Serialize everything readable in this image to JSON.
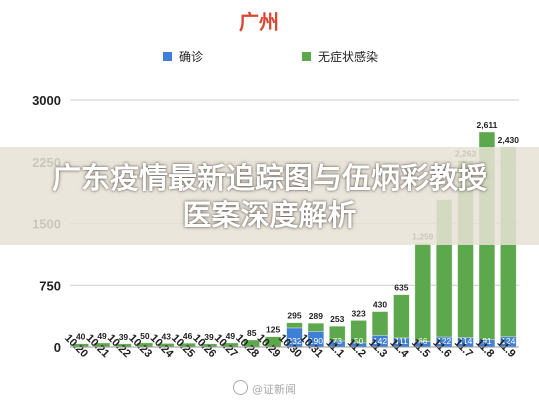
{
  "page": {
    "overlay_title_line1": "广东疫情最新追踪图与伍炳彩教授",
    "overlay_title_line2": "医案深度解析",
    "watermark": "@证新闻"
  },
  "chart_data": {
    "type": "bar",
    "stacked": true,
    "title": "广州",
    "xlabel": "",
    "ylabel": "",
    "ylim": [
      0,
      3000
    ],
    "yticks": [
      0,
      750,
      1500,
      2250,
      3000
    ],
    "grid": true,
    "legend_position": "top",
    "categories": [
      "10.20",
      "10.21",
      "10.22",
      "10.23",
      "10.24",
      "10.25",
      "10.26",
      "10.27",
      "10.28",
      "10.29",
      "10.30",
      "10.31",
      "11.1",
      "11.2",
      "11.3",
      "11.4",
      "11.5",
      "11.6",
      "11.7",
      "11.8",
      "11.9"
    ],
    "series": [
      {
        "name": "确诊",
        "color": "#3f7fd6",
        "values": [
          0,
          0,
          0,
          0,
          0,
          0,
          0,
          0,
          0,
          0,
          232,
          190,
          73,
          50,
          142,
          111,
          66,
          122,
          114,
          91,
          124
        ]
      },
      {
        "name": "无症状感染",
        "color": "#5da84c",
        "values": [
          40,
          49,
          39,
          50,
          43,
          46,
          39,
          49,
          85,
          125,
          63,
          99,
          180,
          273,
          288,
          524,
          1193,
          1668,
          2149,
          2520,
          2306
        ]
      }
    ],
    "bottom_labels": [
      "",
      "",
      "",
      "",
      "",
      "",
      "",
      "",
      "",
      "",
      "232",
      "190",
      "73",
      "50",
      "142",
      "111",
      "66",
      "122",
      "114",
      "91",
      "124"
    ],
    "total_labels": [
      "40",
      "49",
      "39",
      "50",
      "43",
      "46",
      "39",
      "49",
      "85",
      "125",
      "295",
      "289",
      "253",
      "323",
      "430",
      "635",
      "1,259",
      "",
      "2,263",
      "2,611",
      "2,430"
    ],
    "colors": {
      "title": "#d94632",
      "axis_text": "#222222",
      "grid": "#cccccc",
      "confirmed": "#3f7fd6",
      "asymptomatic": "#5da84c"
    }
  }
}
